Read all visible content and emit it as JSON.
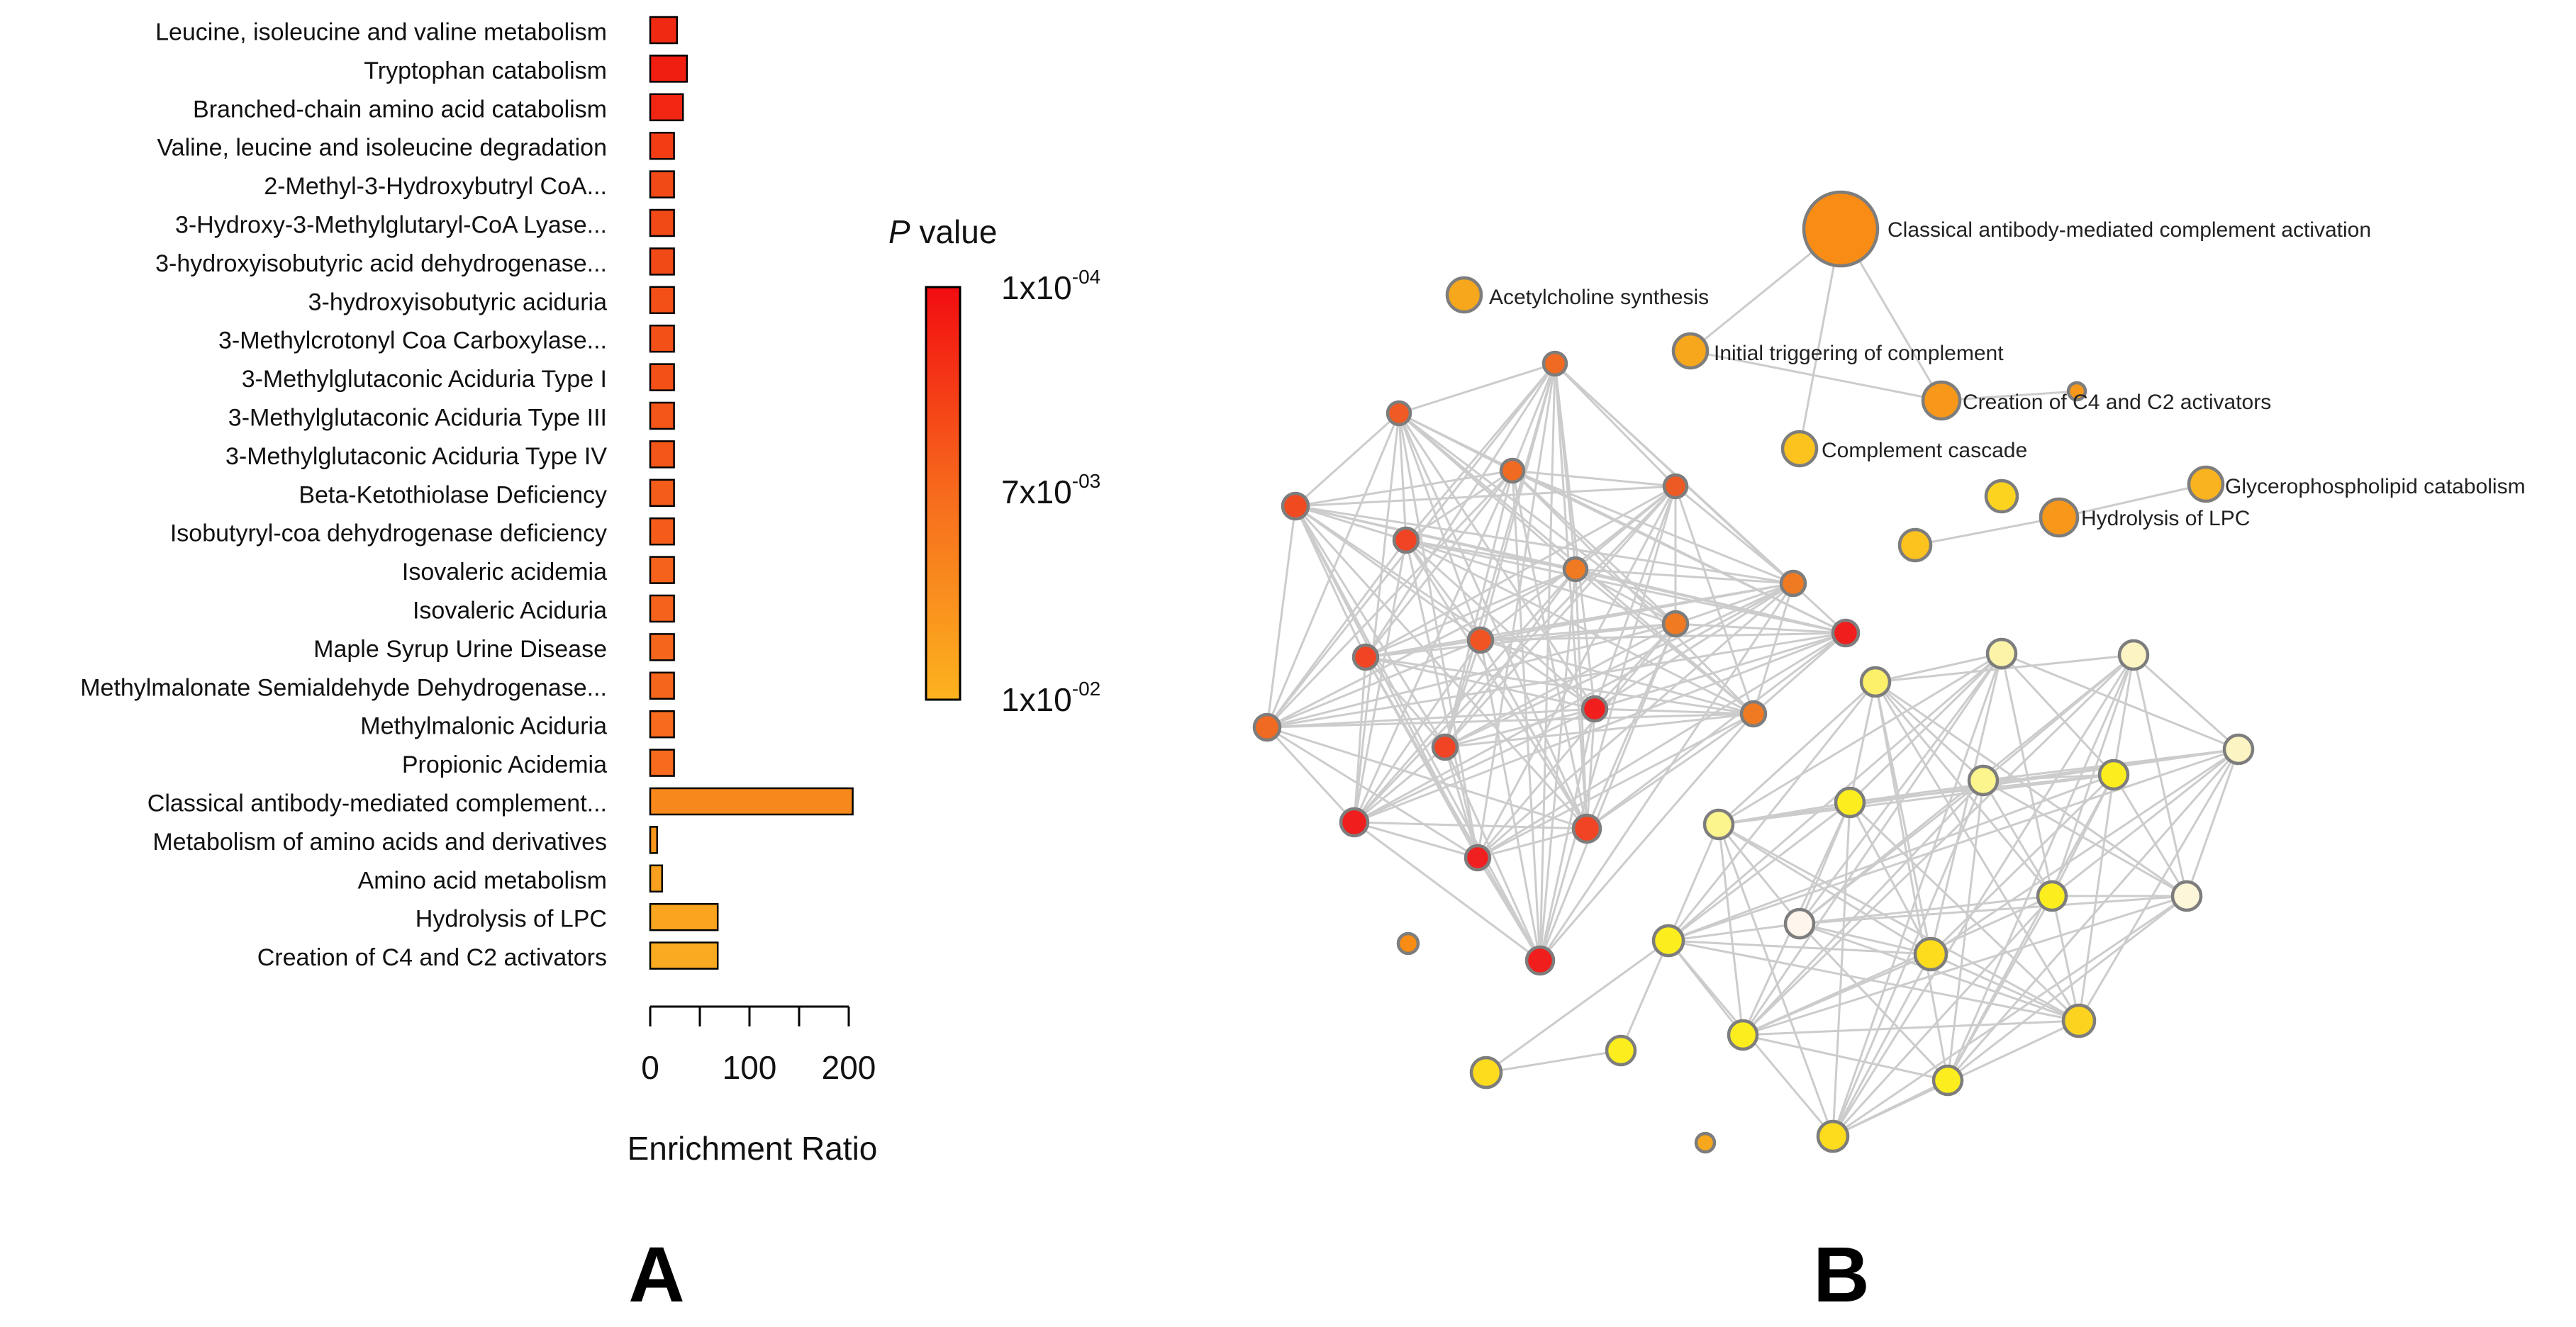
{
  "panel_labels": {
    "a": "A",
    "b": "B"
  },
  "chart_data": [
    {
      "type": "bar",
      "orientation": "horizontal",
      "panel": "A",
      "title": "",
      "xlabel": "Enrichment Ratio",
      "ylabel": "",
      "xlim": [
        0,
        200
      ],
      "xticks": [
        0,
        100,
        200
      ],
      "categories": [
        "Leucine, isoleucine and valine metabolism",
        "Tryptophan catabolism",
        "Branched-chain amino acid catabolism",
        "Valine, leucine and isoleucine degradation",
        "2-Methyl-3-Hydroxybutryl CoA...",
        "3-Hydroxy-3-Methylglutaryl-CoA Lyase...",
        "3-hydroxyisobutyric acid dehydrogenase...",
        "3-hydroxyisobutyric aciduria",
        "3-Methylcrotonyl Coa Carboxylase...",
        "3-Methylglutaconic Aciduria Type I",
        "3-Methylglutaconic Aciduria Type III",
        "3-Methylglutaconic Aciduria Type IV",
        "Beta-Ketothiolase Deficiency",
        "Isobutyryl-coa dehydrogenase deficiency",
        "Isovaleric acidemia",
        "Isovaleric Aciduria",
        "Maple Syrup Urine Disease",
        "Methylmalonate Semialdehyde Dehydrogenase...",
        "Methylmalonic Aciduria",
        "Propionic Acidemia",
        "Classical antibody-mediated complement...",
        "Metabolism of amino acids and derivatives",
        "Amino acid metabolism",
        "Hydrolysis of LPC",
        "Creation of C4 and C2 activators"
      ],
      "values": [
        27,
        37,
        33,
        24,
        24,
        24,
        24,
        24,
        24,
        24,
        24,
        24,
        24,
        24,
        24,
        24,
        24,
        24,
        24,
        24,
        204,
        7,
        12,
        68,
        68
      ],
      "bar_colors": [
        "#f02a12",
        "#ef1e10",
        "#f02612",
        "#f23c14",
        "#f24a16",
        "#f24a16",
        "#f24a16",
        "#f35018",
        "#f35018",
        "#f35018",
        "#f45519",
        "#f45519",
        "#f45c1a",
        "#f55c1a",
        "#f5621b",
        "#f5621b",
        "#f5661c",
        "#f5661c",
        "#f66b1d",
        "#f66b1d",
        "#f7891c",
        "#f8961c",
        "#f9a01e",
        "#faa41f",
        "#faaa20"
      ],
      "legend": {
        "title_italic": "P",
        "title_rest": " value",
        "labels": [
          {
            "base": "1x10",
            "exp": "-04"
          },
          {
            "base": "7x10",
            "exp": "-03"
          },
          {
            "base": "1x10",
            "exp": "-02"
          }
        ],
        "gradient_top": "#f20c10",
        "gradient_mid": "#f76b1d",
        "gradient_bottom": "#fcb31e"
      }
    },
    {
      "type": "network",
      "panel": "B",
      "labeled_nodes": [
        "Classical antibody-mediated complement activation",
        "Acetylcholine synthesis",
        "Initial triggering of complement",
        "Creation of C4 and C2 activators",
        "Complement cascade",
        "Glycerophospholipid catabolism",
        "Hydrolysis of LPC"
      ],
      "edge_color": "#cccccc",
      "node_stroke": "#7d7d7d"
    }
  ]
}
